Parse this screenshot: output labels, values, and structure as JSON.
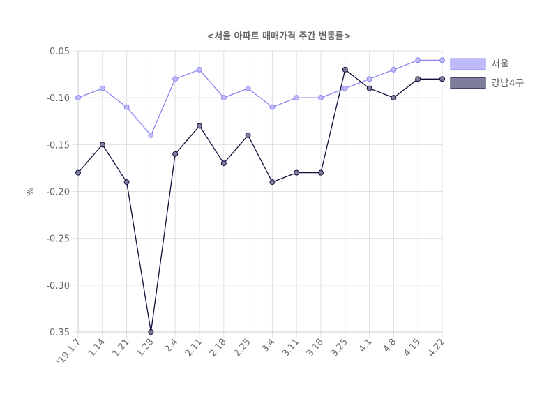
{
  "chart_data": {
    "type": "line",
    "title": "<서울 아파트 매매가격 주간 변동률>",
    "xlabel": "",
    "ylabel": "%",
    "ylim": [
      -0.35,
      -0.05
    ],
    "yticks": [
      "-0.05",
      "-0.10",
      "-0.15",
      "-0.20",
      "-0.25",
      "-0.30",
      "-0.35"
    ],
    "yticks_values": [
      -0.05,
      -0.1,
      -0.15,
      -0.2,
      -0.25,
      -0.3,
      -0.35
    ],
    "categories": [
      "'19.1.7",
      "1.14",
      "1.21",
      "1.28",
      "2.4",
      "2.11",
      "2.18",
      "2.25",
      "3.4",
      "3.11",
      "3.18",
      "3.25",
      "4.1",
      "4.8",
      "4.15",
      "4.22"
    ],
    "grid": true,
    "legend_position": "right",
    "series": [
      {
        "name": "서울",
        "line_color": "#8a86f0",
        "fill_color": "#bcbaf8",
        "values": [
          -0.1,
          -0.09,
          -0.11,
          -0.14,
          -0.08,
          -0.07,
          -0.1,
          -0.09,
          -0.11,
          -0.1,
          -0.1,
          -0.09,
          -0.08,
          -0.07,
          -0.06,
          -0.06
        ]
      },
      {
        "name": "강남4구",
        "line_color": "#0e0f3a",
        "fill_color": "#7d7d9c",
        "values": [
          -0.18,
          -0.15,
          -0.19,
          -0.35,
          -0.16,
          -0.13,
          -0.17,
          -0.14,
          -0.19,
          -0.18,
          -0.18,
          -0.07,
          -0.09,
          -0.1,
          -0.08,
          -0.08
        ]
      }
    ]
  }
}
